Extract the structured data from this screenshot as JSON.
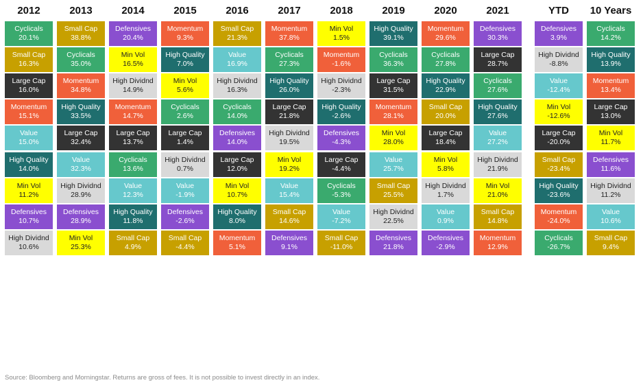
{
  "chart_data": {
    "type": "table",
    "columns": [
      "2012",
      "2013",
      "2014",
      "2015",
      "2016",
      "2017",
      "2018",
      "2019",
      "2020",
      "2021",
      "YTD",
      "10 Years"
    ],
    "colors": {
      "Cyclicals": "#3aaa6e",
      "Small Cap": "#c7a000",
      "Large Cap": "#333333",
      "Momentum": "#f0603a",
      "Value": "#66c8cc",
      "High Quality": "#1f6e6e",
      "Min Vol": "#ffff00",
      "Defensives": "#8a4fcf",
      "High Dividnd": "#d9d9d9"
    },
    "text_colors": {
      "Cyclicals": "#ffffff",
      "Small Cap": "#ffffff",
      "Large Cap": "#ffffff",
      "Momentum": "#ffffff",
      "Value": "#ffffff",
      "High Quality": "#ffffff",
      "Min Vol": "#222222",
      "Defensives": "#ffffff",
      "High Dividnd": "#222222"
    },
    "data": [
      [
        [
          "Cyclicals",
          "20.1%"
        ],
        [
          "Small Cap",
          "16.3%"
        ],
        [
          "Large Cap",
          "16.0%"
        ],
        [
          "Momentum",
          "15.1%"
        ],
        [
          "Value",
          "15.0%"
        ],
        [
          "High Quality",
          "14.0%"
        ],
        [
          "Min Vol",
          "11.2%"
        ],
        [
          "Defensives",
          "10.7%"
        ],
        [
          "High Dividnd",
          "10.6%"
        ]
      ],
      [
        [
          "Small Cap",
          "38.8%"
        ],
        [
          "Cyclicals",
          "35.0%"
        ],
        [
          "Momentum",
          "34.8%"
        ],
        [
          "High Quality",
          "33.5%"
        ],
        [
          "Large Cap",
          "32.4%"
        ],
        [
          "Value",
          "32.3%"
        ],
        [
          "High Dividnd",
          "28.9%"
        ],
        [
          "Defensives",
          "28.9%"
        ],
        [
          "Min Vol",
          "25.3%"
        ]
      ],
      [
        [
          "Defensives",
          "20.4%"
        ],
        [
          "Min Vol",
          "16.5%"
        ],
        [
          "High Dividnd",
          "14.9%"
        ],
        [
          "Momentum",
          "14.7%"
        ],
        [
          "Large Cap",
          "13.7%"
        ],
        [
          "Cyclicals",
          "13.6%"
        ],
        [
          "Value",
          "12.3%"
        ],
        [
          "High Quality",
          "11.8%"
        ],
        [
          "Small Cap",
          "4.9%"
        ]
      ],
      [
        [
          "Momentum",
          "9.3%"
        ],
        [
          "High Quality",
          "7.0%"
        ],
        [
          "Min Vol",
          "5.6%"
        ],
        [
          "Cyclicals",
          "2.6%"
        ],
        [
          "Large Cap",
          "1.4%"
        ],
        [
          "High Dividnd",
          "0.7%"
        ],
        [
          "Value",
          "-1.9%"
        ],
        [
          "Defensives",
          "-2.6%"
        ],
        [
          "Small Cap",
          "-4.4%"
        ]
      ],
      [
        [
          "Small Cap",
          "21.3%"
        ],
        [
          "Value",
          "16.9%"
        ],
        [
          "High Dividnd",
          "16.3%"
        ],
        [
          "Cyclicals",
          "14.0%"
        ],
        [
          "Defensives",
          "14.0%"
        ],
        [
          "Large Cap",
          "12.0%"
        ],
        [
          "Min Vol",
          "10.7%"
        ],
        [
          "High Quality",
          "8.0%"
        ],
        [
          "Momentum",
          "5.1%"
        ]
      ],
      [
        [
          "Momentum",
          "37.8%"
        ],
        [
          "Cyclicals",
          "27.3%"
        ],
        [
          "High Quality",
          "26.0%"
        ],
        [
          "Large Cap",
          "21.8%"
        ],
        [
          "High Dividnd",
          "19.5%"
        ],
        [
          "Min Vol",
          "19.2%"
        ],
        [
          "Value",
          "15.4%"
        ],
        [
          "Small Cap",
          "14.6%"
        ],
        [
          "Defensives",
          "9.1%"
        ]
      ],
      [
        [
          "Min Vol",
          "1.5%"
        ],
        [
          "Momentum",
          "-1.6%"
        ],
        [
          "High Dividnd",
          "-2.3%"
        ],
        [
          "High Quality",
          "-2.6%"
        ],
        [
          "Defensives",
          "-4.3%"
        ],
        [
          "Large Cap",
          "-4.4%"
        ],
        [
          "Cyclicals",
          "-5.3%"
        ],
        [
          "Value",
          "-7.2%"
        ],
        [
          "Small Cap",
          "-11.0%"
        ]
      ],
      [
        [
          "High Quality",
          "39.1%"
        ],
        [
          "Cyclicals",
          "36.3%"
        ],
        [
          "Large Cap",
          "31.5%"
        ],
        [
          "Momentum",
          "28.1%"
        ],
        [
          "Min Vol",
          "28.0%"
        ],
        [
          "Value",
          "25.7%"
        ],
        [
          "Small Cap",
          "25.5%"
        ],
        [
          "High Dividnd",
          "22.5%"
        ],
        [
          "Defensives",
          "21.8%"
        ]
      ],
      [
        [
          "Momentum",
          "29.6%"
        ],
        [
          "Cyclicals",
          "27.8%"
        ],
        [
          "High Quality",
          "22.9%"
        ],
        [
          "Small Cap",
          "20.0%"
        ],
        [
          "Large Cap",
          "18.4%"
        ],
        [
          "Min Vol",
          "5.8%"
        ],
        [
          "High Dividnd",
          "1.7%"
        ],
        [
          "Value",
          "0.9%"
        ],
        [
          "Defensives",
          "-2.9%"
        ]
      ],
      [
        [
          "Defensives",
          "30.3%"
        ],
        [
          "Large Cap",
          "28.7%"
        ],
        [
          "Cyclicals",
          "27.6%"
        ],
        [
          "High Quality",
          "27.6%"
        ],
        [
          "Value",
          "27.2%"
        ],
        [
          "High Dividnd",
          "21.9%"
        ],
        [
          "Min Vol",
          "21.0%"
        ],
        [
          "Small Cap",
          "14.8%"
        ],
        [
          "Momentum",
          "12.9%"
        ]
      ],
      [
        [
          "Defensives",
          "3.9%"
        ],
        [
          "High Dividnd",
          "-8.8%"
        ],
        [
          "Value",
          "-12.4%"
        ],
        [
          "Min Vol",
          "-12.6%"
        ],
        [
          "Large Cap",
          "-20.0%"
        ],
        [
          "Small Cap",
          "-23.4%"
        ],
        [
          "High Quality",
          "-23.6%"
        ],
        [
          "Momentum",
          "-24.0%"
        ],
        [
          "Cyclicals",
          "-26.7%"
        ]
      ],
      [
        [
          "Cyclicals",
          "14.2%"
        ],
        [
          "High Quality",
          "13.9%"
        ],
        [
          "Momentum",
          "13.4%"
        ],
        [
          "Large Cap",
          "13.0%"
        ],
        [
          "Min Vol",
          "11.7%"
        ],
        [
          "Defensives",
          "11.6%"
        ],
        [
          "High Dividnd",
          "11.2%"
        ],
        [
          "Value",
          "10.6%"
        ],
        [
          "Small Cap",
          "9.4%"
        ]
      ]
    ]
  },
  "source_note": "Source: Bloomberg and Morningstar. Returns are gross of fees. It is not possible to invest directly in an index."
}
